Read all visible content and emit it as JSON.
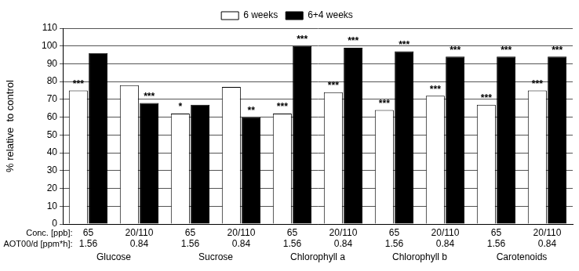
{
  "chart_data": {
    "type": "bar",
    "y_label": "% relative  to control",
    "category_label": "Conc. [ppb]:",
    "categories": [
      "65",
      "20/110",
      "65",
      "20/110",
      "65",
      "20/110",
      "65",
      "20/110",
      "65",
      "20/110"
    ],
    "aot": {
      "label": "AOT00/d [ppm*h]:",
      "values": [
        1.56,
        0.84,
        1.56,
        0.84,
        1.56,
        0.84,
        1.56,
        0.84,
        1.56,
        0.84
      ]
    },
    "groups": [
      "Glucose",
      "Sucrose",
      "Chlorophyll a",
      "Chlorophyll b",
      "Carotenoids"
    ],
    "series": [
      {
        "name": "6 weeks",
        "color": "#ffffff",
        "values": [
          75,
          78,
          62,
          77,
          62,
          74,
          64,
          72,
          67,
          75
        ],
        "significance": [
          "***",
          null,
          "*",
          null,
          "***",
          "***",
          "***",
          "***",
          "***",
          "***"
        ]
      },
      {
        "name": "6+4 weeks",
        "color": "#000000",
        "values": [
          96,
          68,
          67,
          60,
          100,
          99,
          97,
          94,
          94,
          94
        ],
        "significance": [
          null,
          "***",
          null,
          "**",
          "***",
          "***",
          "***",
          "***",
          "***",
          "***"
        ]
      }
    ],
    "ylim": [
      0,
      110
    ],
    "yticks": [
      0,
      10,
      20,
      30,
      40,
      50,
      60,
      70,
      80,
      90,
      100,
      110
    ],
    "grid": true,
    "legend": "top"
  }
}
